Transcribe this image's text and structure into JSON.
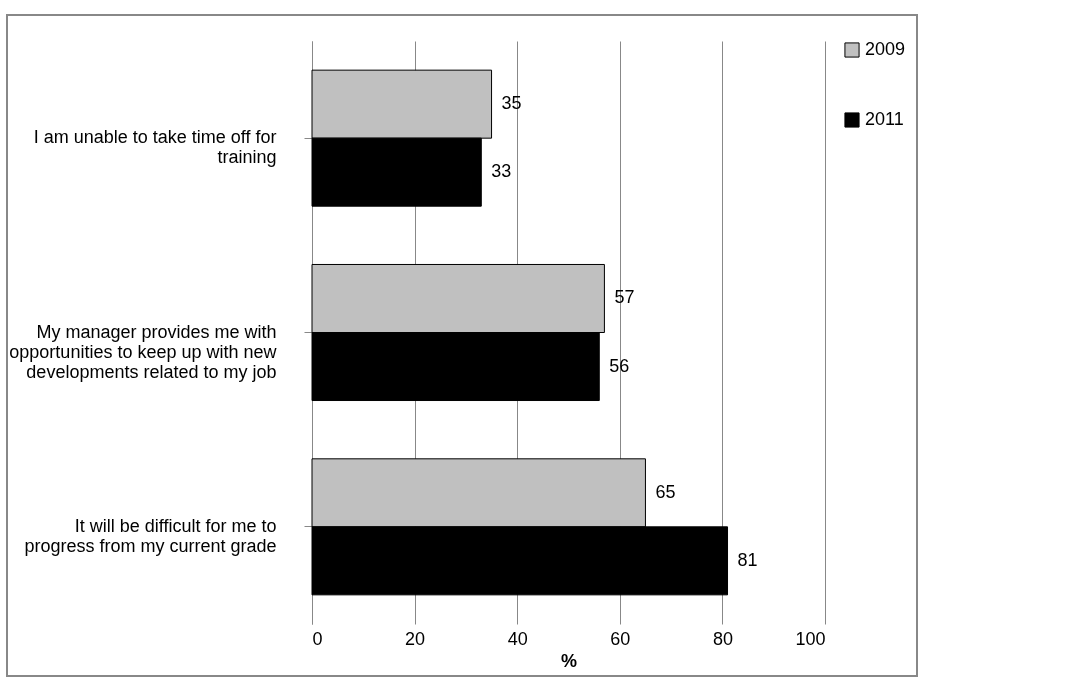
{
  "chart_data": {
    "type": "bar",
    "orientation": "horizontal",
    "xlabel": "%",
    "categories": [
      "I am unable to take time off for training",
      "My manager provides me with opportunities to keep up with new developments related to my job",
      "It will be difficult for me to progress from my current grade"
    ],
    "series": [
      {
        "name": "2009",
        "color": "#c0c0c0",
        "values": [
          35,
          57,
          65
        ]
      },
      {
        "name": "2011",
        "color": "#000000",
        "values": [
          33,
          56,
          81
        ]
      }
    ],
    "xlim": [
      0,
      100
    ],
    "xticks": [
      0,
      20,
      40,
      60,
      80,
      100
    ],
    "grid": "x",
    "legend": "right",
    "data_labels": true
  }
}
